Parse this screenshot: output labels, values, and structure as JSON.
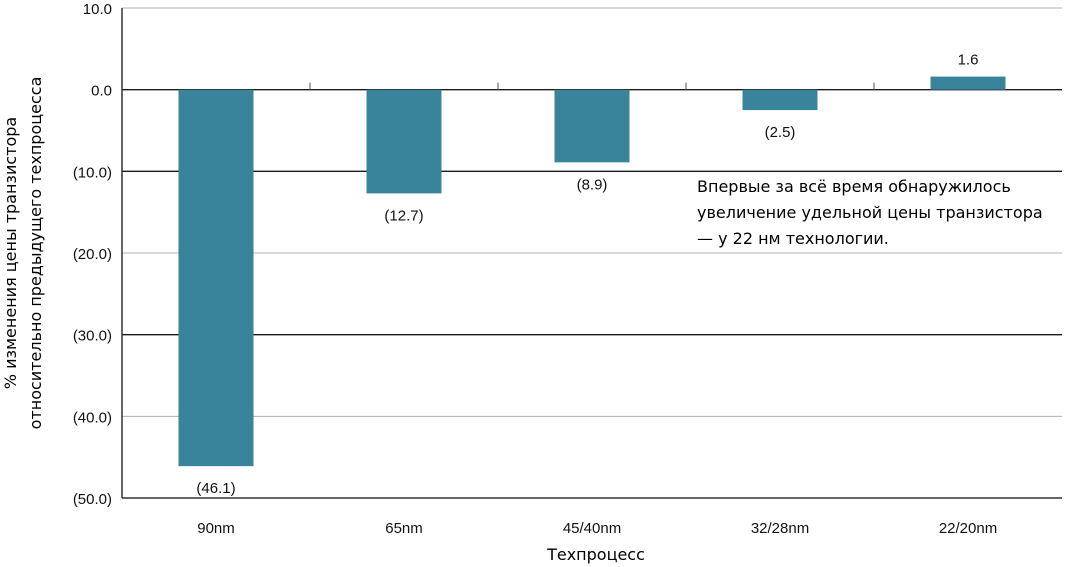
{
  "chart_data": {
    "type": "bar",
    "categories": [
      "90nm",
      "65nm",
      "45/40nm",
      "32/28nm",
      "22/20nm"
    ],
    "values": [
      -46.1,
      -12.7,
      -8.9,
      -2.5,
      1.6
    ],
    "value_labels": [
      "(46.1)",
      "(12.7)",
      "(8.9)",
      "(2.5)",
      "1.6"
    ],
    "y_ticks": [
      10,
      0,
      -10,
      -20,
      -30,
      -40,
      -50
    ],
    "y_tick_labels": [
      "10.0",
      "0.0",
      "(10.0)",
      "(20.0)",
      "(30.0)",
      "(40.0)",
      "(50.0)"
    ],
    "ylim": [
      -50,
      10
    ],
    "xlabel": "Техпроцесс",
    "ylabel_lines": [
      "% изменения цены транзистора",
      "относительно предыдущего техпроцесса"
    ],
    "annotation": "Впервые за всё время обнаружилось увеличение удельной цены транзистора — у 22 нм технологии.",
    "grid": true,
    "bar_color": "#3a849b"
  }
}
